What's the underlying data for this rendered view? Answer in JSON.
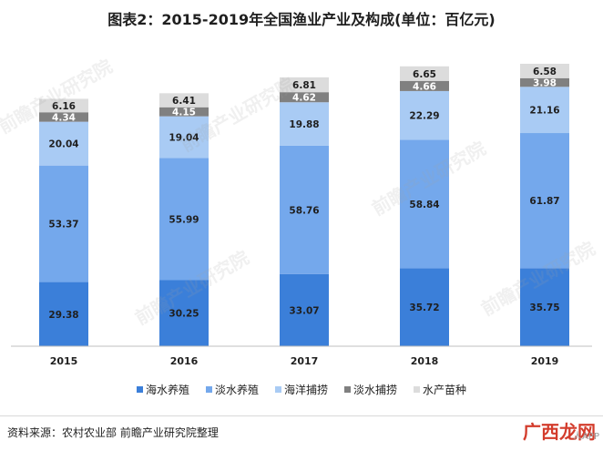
{
  "title": "图表2：2015-2019年全国渔业产业及构成(单位：百亿元)",
  "source": "资料来源：农村农业部 前瞻产业研究院整理",
  "watermark": "前瞻产业研究院",
  "brand": "广西龙网",
  "brand_sub": "人APP",
  "chart_data": {
    "type": "bar",
    "stacked": true,
    "title": "图表2：2015-2019年全国渔业产业及构成(单位：百亿元)",
    "xlabel": "",
    "ylabel": "",
    "categories": [
      "2015",
      "2016",
      "2017",
      "2018",
      "2019"
    ],
    "legend_position": "bottom",
    "grid": false,
    "series": [
      {
        "name": "海水养殖",
        "color": "#3b7fd9",
        "values": [
          29.38,
          30.25,
          33.07,
          35.72,
          35.75
        ]
      },
      {
        "name": "淡水养殖",
        "color": "#74a8ec",
        "values": [
          53.37,
          55.99,
          58.76,
          58.84,
          61.87
        ]
      },
      {
        "name": "海洋捕捞",
        "color": "#a9cbf4",
        "values": [
          20.04,
          19.04,
          19.88,
          22.29,
          21.16
        ]
      },
      {
        "name": "淡水捕捞",
        "color": "#808080",
        "values": [
          4.34,
          4.15,
          4.62,
          4.66,
          3.98
        ]
      },
      {
        "name": "水产苗种",
        "color": "#dcdcdc",
        "values": [
          6.16,
          6.41,
          6.81,
          6.65,
          6.58
        ]
      }
    ]
  }
}
